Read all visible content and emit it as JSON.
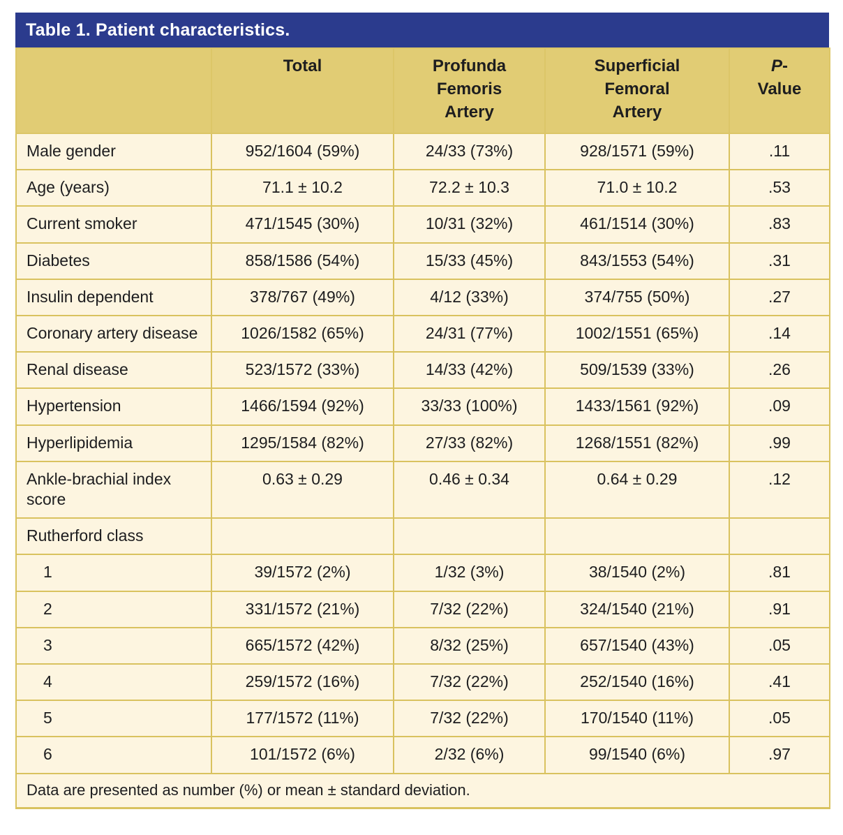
{
  "page": {
    "title": "Table 1. Patient characteristics."
  },
  "colors": {
    "title_bar_background": "#2b3b8d",
    "title_text": "#ffffff",
    "header_row_background": "#e1cc74",
    "body_row_background": "#fdf5e0",
    "grid_border": "#d9c25f",
    "text": "#1d1d1f"
  },
  "table": {
    "columns": {
      "blank": "",
      "total": "Total",
      "profunda": "Profunda\nFemoris\nArtery",
      "superficial": "Superficial\nFemoral\nArtery",
      "pvalue": {
        "italic": "P",
        "rest": "-\nValue"
      }
    },
    "rows": [
      {
        "label": "Male gender",
        "indent": false,
        "total": "952/1604 (59%)",
        "pfa": "24/33 (73%)",
        "sfa": "928/1571 (59%)",
        "p": ".11"
      },
      {
        "label": "Age (years)",
        "indent": false,
        "total": "71.1 ± 10.2",
        "pfa": "72.2 ± 10.3",
        "sfa": "71.0 ± 10.2",
        "p": ".53"
      },
      {
        "label": "Current smoker",
        "indent": false,
        "total": "471/1545 (30%)",
        "pfa": "10/31 (32%)",
        "sfa": "461/1514 (30%)",
        "p": ".83"
      },
      {
        "label": "Diabetes",
        "indent": false,
        "total": "858/1586 (54%)",
        "pfa": "15/33 (45%)",
        "sfa": "843/1553 (54%)",
        "p": ".31"
      },
      {
        "label": "Insulin dependent",
        "indent": false,
        "total": "378/767 (49%)",
        "pfa": "4/12 (33%)",
        "sfa": "374/755 (50%)",
        "p": ".27"
      },
      {
        "label": "Coronary artery disease",
        "indent": false,
        "total": "1026/1582 (65%)",
        "pfa": "24/31 (77%)",
        "sfa": "1002/1551 (65%)",
        "p": ".14"
      },
      {
        "label": "Renal disease",
        "indent": false,
        "total": "523/1572 (33%)",
        "pfa": "14/33 (42%)",
        "sfa": "509/1539 (33%)",
        "p": ".26"
      },
      {
        "label": "Hypertension",
        "indent": false,
        "total": "1466/1594 (92%)",
        "pfa": "33/33 (100%)",
        "sfa": "1433/1561 (92%)",
        "p": ".09"
      },
      {
        "label": "Hyperlipidemia",
        "indent": false,
        "total": "1295/1584 (82%)",
        "pfa": "27/33 (82%)",
        "sfa": "1268/1551 (82%)",
        "p": ".99"
      },
      {
        "label": "Ankle-brachial index score",
        "indent": false,
        "total": "0.63 ± 0.29",
        "pfa": "0.46 ± 0.34",
        "sfa": "0.64 ± 0.29",
        "p": ".12"
      },
      {
        "label": "Rutherford class",
        "indent": false,
        "total": "",
        "pfa": "",
        "sfa": "",
        "p": ""
      },
      {
        "label": "1",
        "indent": true,
        "total": "39/1572 (2%)",
        "pfa": "1/32 (3%)",
        "sfa": "38/1540 (2%)",
        "p": ".81"
      },
      {
        "label": "2",
        "indent": true,
        "total": "331/1572 (21%)",
        "pfa": "7/32 (22%)",
        "sfa": "324/1540 (21%)",
        "p": ".91"
      },
      {
        "label": "3",
        "indent": true,
        "total": "665/1572 (42%)",
        "pfa": "8/32 (25%)",
        "sfa": "657/1540 (43%)",
        "p": ".05"
      },
      {
        "label": "4",
        "indent": true,
        "total": "259/1572 (16%)",
        "pfa": "7/32 (22%)",
        "sfa": "252/1540 (16%)",
        "p": ".41"
      },
      {
        "label": "5",
        "indent": true,
        "total": "177/1572 (11%)",
        "pfa": "7/32 (22%)",
        "sfa": "170/1540 (11%)",
        "p": ".05"
      },
      {
        "label": "6",
        "indent": true,
        "total": "101/1572 (6%)",
        "pfa": "2/32 (6%)",
        "sfa": "99/1540 (6%)",
        "p": ".97"
      }
    ],
    "footnote": "Data are presented as number (%) or mean ± standard deviation."
  }
}
